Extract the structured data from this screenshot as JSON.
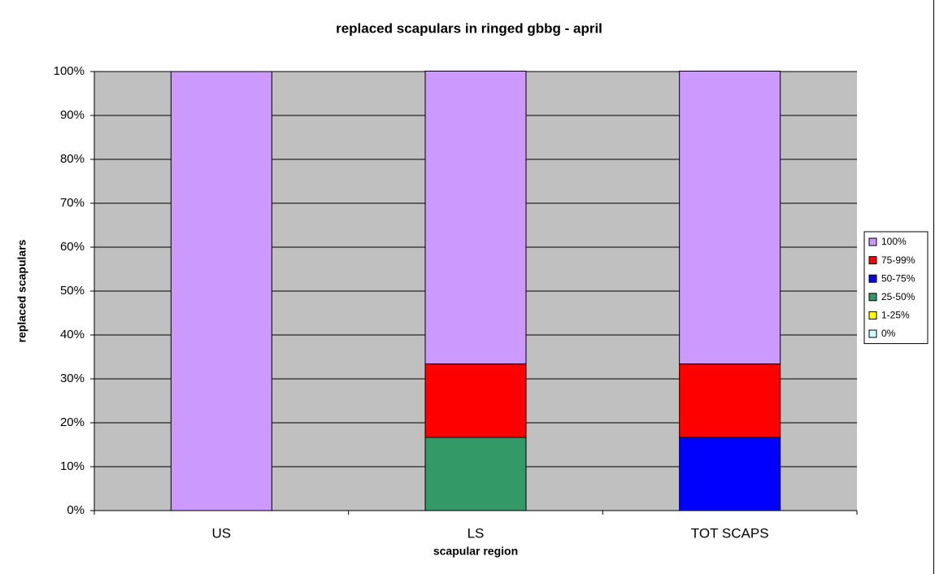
{
  "chart_data": {
    "type": "stacked_bar",
    "title": "replaced scapulars in ringed gbbg - april",
    "x_label": "scapular region",
    "y_label": "replaced scapulars",
    "categories": [
      "US",
      "LS",
      "TOT SCAPS"
    ],
    "series": [
      {
        "name": "0%",
        "color": "#ccffff",
        "values": [
          0,
          0,
          0
        ]
      },
      {
        "name": "1-25%",
        "color": "#ffff00",
        "values": [
          0,
          0,
          0
        ]
      },
      {
        "name": "25-50%",
        "color": "#339966",
        "values": [
          0,
          16.7,
          0
        ]
      },
      {
        "name": "50-75%",
        "color": "#0000ff",
        "values": [
          0,
          0,
          16.7
        ]
      },
      {
        "name": "75-99%",
        "color": "#ff0000",
        "values": [
          0,
          16.7,
          16.7
        ]
      },
      {
        "name": "100%",
        "color": "#cc99ff",
        "values": [
          100,
          66.7,
          66.7
        ]
      }
    ],
    "ylim": [
      0,
      100
    ],
    "yticks": [
      {
        "value": 0,
        "label": "0%"
      },
      {
        "value": 10,
        "label": "10%"
      },
      {
        "value": 20,
        "label": "20%"
      },
      {
        "value": 30,
        "label": "30%"
      },
      {
        "value": 40,
        "label": "40%"
      },
      {
        "value": 50,
        "label": "50%"
      },
      {
        "value": 60,
        "label": "60%"
      },
      {
        "value": 70,
        "label": "70%"
      },
      {
        "value": 80,
        "label": "80%"
      },
      {
        "value": 90,
        "label": "90%"
      },
      {
        "value": 100,
        "label": "100%"
      }
    ],
    "grid": true,
    "plot_background": "#c0c0c0",
    "legend": "right"
  }
}
